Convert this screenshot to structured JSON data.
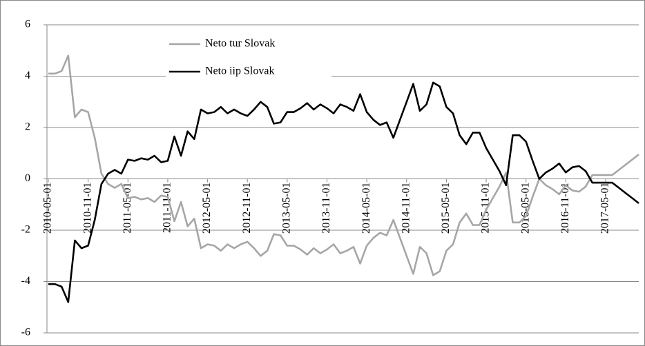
{
  "chart_data": {
    "type": "line",
    "categories": [
      "2010-05-01",
      null,
      null,
      null,
      null,
      null,
      "2010-11-01",
      null,
      null,
      null,
      null,
      null,
      "2011-05-01",
      null,
      null,
      null,
      null,
      null,
      "2011-11-01",
      null,
      null,
      null,
      null,
      null,
      "2012-05-01",
      null,
      null,
      null,
      null,
      null,
      "2012-11-01",
      null,
      null,
      null,
      null,
      null,
      "2013-05-01",
      null,
      null,
      null,
      null,
      null,
      "2013-11-01",
      null,
      null,
      null,
      null,
      null,
      "2014-05-01",
      null,
      null,
      null,
      null,
      null,
      "2014-11-01",
      null,
      null,
      null,
      null,
      null,
      "2015-05-01",
      null,
      null,
      null,
      null,
      null,
      "2015-11-01",
      null,
      null,
      null,
      null,
      null,
      "2016-05-01",
      null,
      null,
      null,
      null,
      null,
      "2016-11-01",
      null,
      null,
      null,
      null,
      null,
      "2017-05-01",
      null,
      null,
      null,
      null,
      null
    ],
    "series": [
      {
        "name": "Neto tur Slovak",
        "color": "#a6a6a6",
        "values": [
          4.1,
          4.1,
          4.2,
          4.8,
          2.4,
          2.7,
          2.6,
          1.6,
          0.2,
          -0.2,
          -0.35,
          -0.2,
          -0.75,
          -0.7,
          -0.8,
          -0.75,
          -0.9,
          -0.65,
          -0.7,
          -1.65,
          -0.9,
          -1.85,
          -1.55,
          -2.7,
          -2.55,
          -2.6,
          -2.8,
          -2.55,
          -2.7,
          -2.55,
          -2.45,
          -2.7,
          -3.0,
          -2.8,
          -2.15,
          -2.2,
          -2.6,
          -2.6,
          -2.75,
          -2.95,
          -2.7,
          -2.9,
          -2.75,
          -2.55,
          -2.9,
          -2.8,
          -2.65,
          -3.3,
          -2.6,
          -2.3,
          -2.1,
          -2.2,
          -1.6,
          -2.3,
          -3.0,
          -3.7,
          -2.65,
          -2.9,
          -3.75,
          -3.6,
          -2.8,
          -2.55,
          -1.7,
          -1.35,
          -1.8,
          -1.8,
          -1.2,
          -0.75,
          -0.3,
          0.25,
          -1.7,
          -1.7,
          -1.45,
          -0.7,
          0.0,
          -0.25,
          -0.4,
          -0.6,
          -0.25,
          -0.45,
          -0.5,
          -0.3,
          0.15,
          0.15,
          0.15,
          0.15,
          0.35,
          0.55,
          0.75,
          0.95
        ]
      },
      {
        "name": "Neto iip Slovak",
        "color": "#000000",
        "values": [
          -4.1,
          -4.1,
          -4.2,
          -4.8,
          -2.4,
          -2.7,
          -2.6,
          -1.6,
          -0.2,
          0.2,
          0.35,
          0.2,
          0.75,
          0.7,
          0.8,
          0.75,
          0.9,
          0.65,
          0.7,
          1.65,
          0.9,
          1.85,
          1.55,
          2.7,
          2.55,
          2.6,
          2.8,
          2.55,
          2.7,
          2.55,
          2.45,
          2.7,
          3.0,
          2.8,
          2.15,
          2.2,
          2.6,
          2.6,
          2.75,
          2.95,
          2.7,
          2.9,
          2.75,
          2.55,
          2.9,
          2.8,
          2.65,
          3.3,
          2.6,
          2.3,
          2.1,
          2.2,
          1.6,
          2.3,
          3.0,
          3.7,
          2.65,
          2.9,
          3.75,
          3.6,
          2.8,
          2.55,
          1.7,
          1.35,
          1.8,
          1.8,
          1.2,
          0.75,
          0.3,
          -0.25,
          1.7,
          1.7,
          1.45,
          0.7,
          0.0,
          0.25,
          0.4,
          0.6,
          0.25,
          0.45,
          0.5,
          0.3,
          -0.15,
          -0.15,
          -0.15,
          -0.15,
          -0.35,
          -0.55,
          -0.75,
          -0.95
        ]
      }
    ],
    "ylim": [
      -6,
      6
    ],
    "yticks": [
      -6,
      -4,
      -2,
      0,
      2,
      4,
      6
    ],
    "grid": true
  }
}
